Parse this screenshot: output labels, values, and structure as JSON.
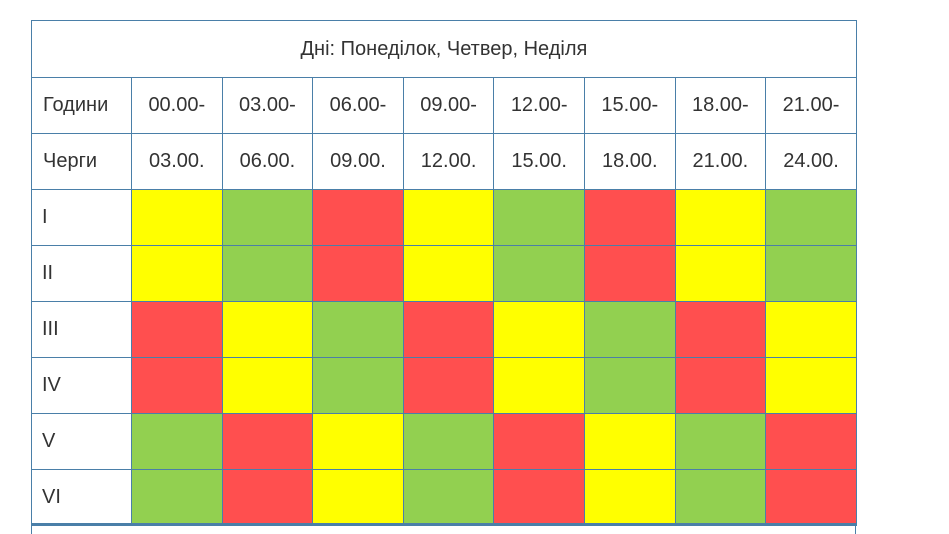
{
  "title": "Дні: Понеділок, Четвер, Неділя",
  "header": {
    "hours_label": "Години",
    "queues_label": "Черги",
    "starts": [
      "00.00-",
      "03.00-",
      "06.00-",
      "09.00-",
      "12.00-",
      "15.00-",
      "18.00-",
      "21.00-"
    ],
    "ends": [
      "03.00.",
      "06.00.",
      "09.00.",
      "12.00.",
      "15.00.",
      "18.00.",
      "21.00.",
      "24.00."
    ]
  },
  "colors": {
    "yellow": "#ffff00",
    "green": "#92d050",
    "red": "#ff4f4f"
  },
  "rows": [
    {
      "queue": "I",
      "cells": [
        "yellow",
        "green",
        "red",
        "yellow",
        "green",
        "red",
        "yellow",
        "green"
      ]
    },
    {
      "queue": "II",
      "cells": [
        "yellow",
        "green",
        "red",
        "yellow",
        "green",
        "red",
        "yellow",
        "green"
      ]
    },
    {
      "queue": "III",
      "cells": [
        "red",
        "yellow",
        "green",
        "red",
        "yellow",
        "green",
        "red",
        "yellow"
      ]
    },
    {
      "queue": "IV",
      "cells": [
        "red",
        "yellow",
        "green",
        "red",
        "yellow",
        "green",
        "red",
        "yellow"
      ]
    },
    {
      "queue": "V",
      "cells": [
        "green",
        "red",
        "yellow",
        "green",
        "red",
        "yellow",
        "green",
        "red"
      ]
    },
    {
      "queue": "VI",
      "cells": [
        "green",
        "red",
        "yellow",
        "green",
        "red",
        "yellow",
        "green",
        "red"
      ]
    }
  ]
}
